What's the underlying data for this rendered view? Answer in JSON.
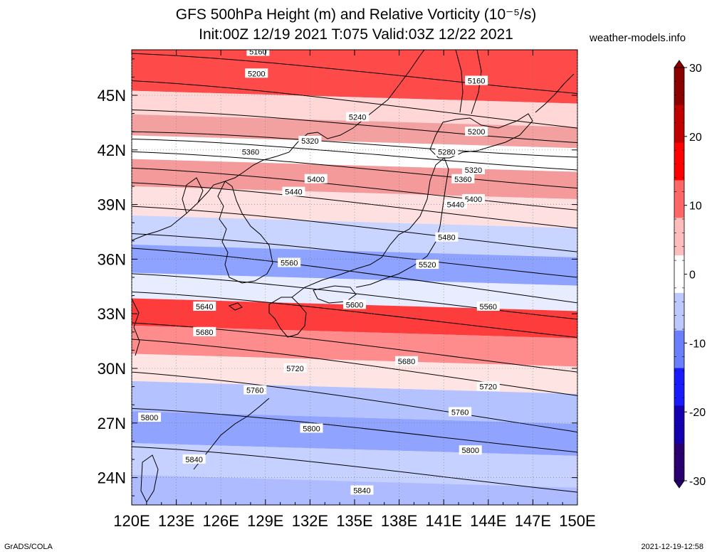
{
  "title_line1": "GFS 500hPa Height (m) and Relative Vorticity (10⁻⁵/s)",
  "title_line2": "Init:00Z 12/19 2021 T:075 Valid:03Z 12/22 2021",
  "site": "weather-models.info",
  "footer_left": "GrADS/COLA",
  "footer_right": "2021-12-19-12:58",
  "map": {
    "lon_range": [
      120,
      150
    ],
    "lat_range": [
      22.5,
      47.5
    ],
    "lon_ticks": [
      "120E",
      "123E",
      "126E",
      "129E",
      "132E",
      "135E",
      "138E",
      "141E",
      "144E",
      "147E",
      "150E"
    ],
    "lat_ticks": [
      "24N",
      "27N",
      "30N",
      "33N",
      "36N",
      "39N",
      "42N",
      "45N"
    ],
    "lat_tick_values": [
      24,
      27,
      30,
      33,
      36,
      39,
      42,
      45
    ],
    "lon_tick_values": [
      120,
      123,
      126,
      129,
      132,
      135,
      138,
      141,
      144,
      147,
      150
    ]
  },
  "colorbar": {
    "tick_labels": [
      "30",
      "20",
      "10",
      "0",
      "-10",
      "-20",
      "-30"
    ],
    "tick_values": [
      30,
      20,
      10,
      0,
      -10,
      -20,
      -30
    ],
    "colors": [
      "#8b0000",
      "#c00000",
      "#ff0000",
      "#ff6666",
      "#ffbcbc",
      "#ffffff",
      "#bcc8ff",
      "#6a7fff",
      "#1a1aff",
      "#1400b0",
      "#2a0070"
    ]
  },
  "vorticity_bands": [
    {
      "lat": 46.0,
      "color": "#ff4a4a"
    },
    {
      "lat": 44.5,
      "color": "#ffd7d7"
    },
    {
      "lat": 43.4,
      "color": "#f3a0a0"
    },
    {
      "lat": 42.2,
      "color": "#ffffff"
    },
    {
      "lat": 40.8,
      "color": "#f59a9a"
    },
    {
      "lat": 39.2,
      "color": "#ffe0e0"
    },
    {
      "lat": 37.6,
      "color": "#c9d4ff"
    },
    {
      "lat": 36.0,
      "color": "#8ea2ff"
    },
    {
      "lat": 34.5,
      "color": "#e8ecff"
    },
    {
      "lat": 33.2,
      "color": "#ff3c3c"
    },
    {
      "lat": 31.5,
      "color": "#ff8c8c"
    },
    {
      "lat": 30.1,
      "color": "#ffe4e4"
    },
    {
      "lat": 28.5,
      "color": "#b4c2ff"
    },
    {
      "lat": 26.8,
      "color": "#8fa3ff"
    },
    {
      "lat": 25.0,
      "color": "#c7d1ff"
    },
    {
      "lat": 23.3,
      "color": "#aebbff"
    }
  ],
  "contours": [
    {
      "label": "5160",
      "y1": 47.3,
      "y2": 45.1,
      "lx": 128.5,
      "ly": 47.4
    },
    {
      "label": "5200",
      "y1": 45.8,
      "y2": 43.2,
      "lx": 128.4,
      "ly": 46.2
    },
    {
      "label": "5240",
      "y1": 44.2,
      "y2": 42.4,
      "lx": 135.2,
      "ly": 43.8
    },
    {
      "label": "5280",
      "y1": 43.0,
      "y2": 41.6,
      "lx": 141.2,
      "ly": 41.9
    },
    {
      "label": "5320",
      "y1": 42.6,
      "y2": 40.9,
      "lx": 132.0,
      "ly": 42.5
    },
    {
      "label": "5360",
      "y1": 41.9,
      "y2": 39.9,
      "lx": 128.0,
      "ly": 41.9
    },
    {
      "label": "5400",
      "y1": 41.0,
      "y2": 38.7,
      "lx": 132.4,
      "ly": 40.4
    },
    {
      "label": "5440",
      "y1": 40.2,
      "y2": 37.7,
      "lx": 130.9,
      "ly": 39.7
    },
    {
      "label": "5480",
      "y1": 38.9,
      "y2": 36.4,
      "lx": 141.2,
      "ly": 37.2
    },
    {
      "label": "5520",
      "y1": 37.4,
      "y2": 35.0,
      "lx": 139.9,
      "ly": 35.7
    },
    {
      "label": "5560",
      "y1": 36.6,
      "y2": 33.6,
      "lx": 130.6,
      "ly": 35.8
    },
    {
      "label": "5600",
      "y1": 35.2,
      "y2": 32.7,
      "lx": 135.0,
      "ly": 33.5
    },
    {
      "label": "5640",
      "y1": 34.2,
      "y2": 31.7,
      "lx": 124.9,
      "ly": 33.4
    },
    {
      "label": "5680",
      "y1": 32.5,
      "y2": 29.8,
      "lx": 124.9,
      "ly": 32.0
    },
    {
      "label": "5720",
      "y1": 31.6,
      "y2": 28.5,
      "lx": 131.0,
      "ly": 30.0
    },
    {
      "label": "5760",
      "y1": 29.8,
      "y2": 26.5,
      "lx": 128.3,
      "ly": 28.8
    },
    {
      "label": "5800",
      "y1": 27.8,
      "y2": 25.4,
      "lx": 121.2,
      "ly": 27.3
    },
    {
      "label": "5840",
      "y1": 25.7,
      "y2": 23.2,
      "lx": 124.2,
      "ly": 25.0
    }
  ],
  "extra_labels": [
    {
      "label": "5160",
      "x": 143.2,
      "y": 45.8
    },
    {
      "label": "5200",
      "x": 143.2,
      "y": 43.0
    },
    {
      "label": "5320",
      "x": 143.0,
      "y": 40.9
    },
    {
      "label": "5360",
      "x": 142.3,
      "y": 40.4
    },
    {
      "label": "5400",
      "x": 143.0,
      "y": 39.3
    },
    {
      "label": "5440",
      "x": 141.8,
      "y": 39.0
    },
    {
      "label": "5560",
      "x": 144.0,
      "y": 33.4
    },
    {
      "label": "5680",
      "x": 138.5,
      "y": 30.4
    },
    {
      "label": "5720",
      "x": 144.0,
      "y": 29.0
    },
    {
      "label": "5760",
      "x": 142.1,
      "y": 27.6
    },
    {
      "label": "5800",
      "x": 142.8,
      "y": 25.5
    },
    {
      "label": "5800",
      "x": 132.1,
      "y": 26.7
    },
    {
      "label": "5840",
      "x": 135.5,
      "y": 23.3
    }
  ]
}
